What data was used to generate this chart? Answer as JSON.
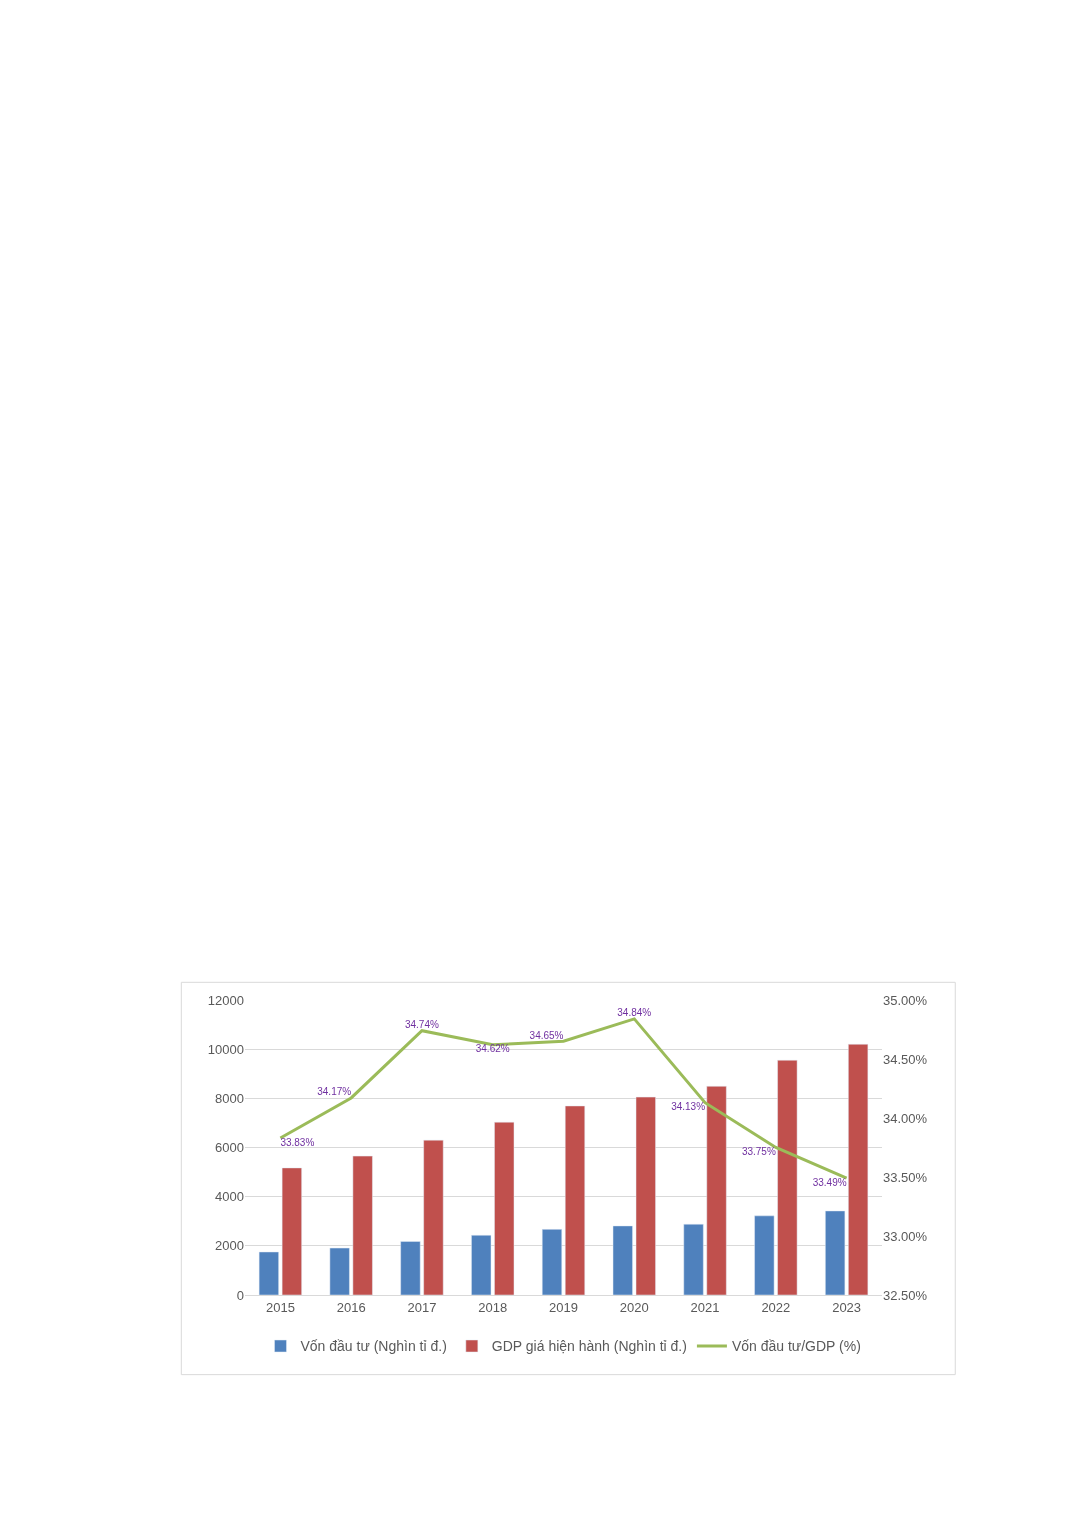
{
  "chart_data": {
    "type": "bar",
    "categories": [
      "2015",
      "2016",
      "2017",
      "2018",
      "2019",
      "2020",
      "2021",
      "2022",
      "2023"
    ],
    "series": [
      {
        "name": "Vốn đầu tư (Nghìn tỉ đ.)",
        "color": "#4f81bd",
        "values": [
          1750,
          1910,
          2180,
          2430,
          2670,
          2810,
          2880,
          3220,
          3420
        ]
      },
      {
        "name": "GDP giá hiện hành (Nghìn tỉ đ.)",
        "color": "#c0504d",
        "values": [
          5170,
          5650,
          6300,
          7030,
          7690,
          8050,
          8490,
          9550,
          10200
        ]
      },
      {
        "name": "Vốn đầu tư/GDP (%)",
        "type": "line",
        "axis": "y2",
        "color": "#9bbb59",
        "marker": "none",
        "values": [
          33.83,
          34.17,
          34.74,
          34.62,
          34.65,
          34.84,
          34.13,
          33.75,
          33.49
        ],
        "value_labels": [
          "33.83%",
          "34.17%",
          "34.74%",
          "34.62%",
          "34.65%",
          "34.84%",
          "34.13%",
          "33.75%",
          "33.49%"
        ]
      }
    ],
    "ylim": [
      0,
      12000
    ],
    "yticks": [
      0,
      2000,
      4000,
      6000,
      8000,
      10000,
      12000
    ],
    "y2lim": [
      32.5,
      35
    ],
    "y2ticks": [
      {
        "value": 32.5,
        "label": "32.50%"
      },
      {
        "value": 33,
        "label": "33.00%"
      },
      {
        "value": 33.5,
        "label": "33.50%"
      },
      {
        "value": 34,
        "label": "34.00%"
      },
      {
        "value": 34.5,
        "label": "34.50%"
      },
      {
        "value": 35,
        "label": "35.00%"
      }
    ],
    "grid": "y",
    "legend": "bottom"
  }
}
